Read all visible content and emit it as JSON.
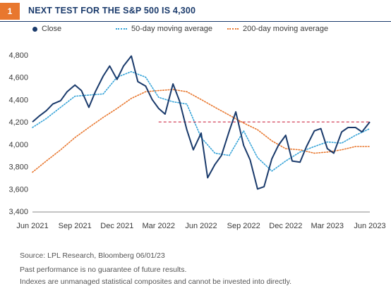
{
  "figure_number": "1",
  "colors": {
    "close": "#1a3a6b",
    "ma50": "#35a3d8",
    "ma200": "#e8772e",
    "reference": "#c8102e",
    "badge": "#e8772e"
  },
  "notes": {
    "source": "Source: LPL Research, Bloomberg  06/01/23",
    "disclaimer1": "Past performance is no guarantee of future results.",
    "disclaimer2": "Indexes are unmanaged statistical composites and cannot be invested into directly."
  },
  "chart_data": {
    "type": "line",
    "title": "NEXT TEST FOR THE S&P 500 IS 4,300",
    "xlabel": "",
    "ylabel": "",
    "ylim": [
      3400,
      4900
    ],
    "yticks": [
      3400,
      3600,
      3800,
      4000,
      4200,
      4400,
      4600,
      4800
    ],
    "ytick_labels": [
      "3,400",
      "3,600",
      "3,800",
      "4,000",
      "4,200",
      "4,400",
      "4,600",
      "4,800"
    ],
    "xlim": [
      "2021-06-01",
      "2023-06-01"
    ],
    "xticks": [
      "2021-06-01",
      "2021-09-01",
      "2021-12-01",
      "2022-03-01",
      "2022-06-01",
      "2022-09-01",
      "2022-12-01",
      "2023-03-01",
      "2023-06-01"
    ],
    "xtick_labels": [
      "Jun 2021",
      "Sep 2021",
      "Dec 2021",
      "Mar 2022",
      "Jun 2022",
      "Sep 2022",
      "Dec 2022",
      "Mar 2023",
      "Jun 2023"
    ],
    "grid": false,
    "legend_position": "top",
    "series": [
      {
        "name": "Close",
        "style": "solid",
        "points": [
          [
            "2021-06-01",
            4200
          ],
          [
            "2021-06-15",
            4250
          ],
          [
            "2021-07-01",
            4300
          ],
          [
            "2021-07-15",
            4360
          ],
          [
            "2021-08-01",
            4390
          ],
          [
            "2021-08-15",
            4470
          ],
          [
            "2021-09-01",
            4530
          ],
          [
            "2021-09-15",
            4480
          ],
          [
            "2021-10-01",
            4330
          ],
          [
            "2021-10-15",
            4470
          ],
          [
            "2021-11-01",
            4610
          ],
          [
            "2021-11-15",
            4700
          ],
          [
            "2021-12-01",
            4580
          ],
          [
            "2021-12-15",
            4700
          ],
          [
            "2022-01-01",
            4790
          ],
          [
            "2022-01-15",
            4560
          ],
          [
            "2022-02-01",
            4520
          ],
          [
            "2022-02-15",
            4400
          ],
          [
            "2022-03-01",
            4320
          ],
          [
            "2022-03-15",
            4270
          ],
          [
            "2022-04-01",
            4540
          ],
          [
            "2022-04-15",
            4390
          ],
          [
            "2022-05-01",
            4130
          ],
          [
            "2022-05-15",
            3950
          ],
          [
            "2022-06-01",
            4100
          ],
          [
            "2022-06-15",
            3700
          ],
          [
            "2022-07-01",
            3820
          ],
          [
            "2022-07-15",
            3900
          ],
          [
            "2022-08-01",
            4120
          ],
          [
            "2022-08-15",
            4290
          ],
          [
            "2022-09-01",
            3990
          ],
          [
            "2022-09-15",
            3860
          ],
          [
            "2022-10-01",
            3600
          ],
          [
            "2022-10-15",
            3620
          ],
          [
            "2022-11-01",
            3870
          ],
          [
            "2022-11-15",
            3990
          ],
          [
            "2022-12-01",
            4080
          ],
          [
            "2022-12-15",
            3850
          ],
          [
            "2023-01-01",
            3840
          ],
          [
            "2023-01-15",
            3980
          ],
          [
            "2023-02-01",
            4120
          ],
          [
            "2023-02-15",
            4140
          ],
          [
            "2023-03-01",
            3960
          ],
          [
            "2023-03-15",
            3920
          ],
          [
            "2023-04-01",
            4110
          ],
          [
            "2023-04-15",
            4150
          ],
          [
            "2023-05-01",
            4150
          ],
          [
            "2023-05-15",
            4110
          ],
          [
            "2023-06-01",
            4200
          ]
        ]
      },
      {
        "name": "50-day moving average",
        "style": "dotted",
        "points": [
          [
            "2021-06-01",
            4150
          ],
          [
            "2021-07-01",
            4230
          ],
          [
            "2021-08-01",
            4330
          ],
          [
            "2021-09-01",
            4430
          ],
          [
            "2021-10-01",
            4440
          ],
          [
            "2021-11-01",
            4450
          ],
          [
            "2021-12-01",
            4600
          ],
          [
            "2022-01-01",
            4650
          ],
          [
            "2022-02-01",
            4600
          ],
          [
            "2022-03-01",
            4420
          ],
          [
            "2022-04-01",
            4380
          ],
          [
            "2022-05-01",
            4360
          ],
          [
            "2022-06-01",
            4060
          ],
          [
            "2022-07-01",
            3920
          ],
          [
            "2022-08-01",
            3900
          ],
          [
            "2022-09-01",
            4120
          ],
          [
            "2022-10-01",
            3880
          ],
          [
            "2022-11-01",
            3760
          ],
          [
            "2022-12-01",
            3850
          ],
          [
            "2023-01-01",
            3930
          ],
          [
            "2023-02-01",
            3980
          ],
          [
            "2023-03-01",
            4020
          ],
          [
            "2023-04-01",
            4010
          ],
          [
            "2023-05-01",
            4080
          ],
          [
            "2023-06-01",
            4140
          ]
        ]
      },
      {
        "name": "200-day moving average",
        "style": "dotted",
        "points": [
          [
            "2021-06-01",
            3750
          ],
          [
            "2021-07-01",
            3850
          ],
          [
            "2021-08-01",
            3950
          ],
          [
            "2021-09-01",
            4060
          ],
          [
            "2021-10-01",
            4150
          ],
          [
            "2021-11-01",
            4240
          ],
          [
            "2021-12-01",
            4320
          ],
          [
            "2022-01-01",
            4410
          ],
          [
            "2022-02-01",
            4470
          ],
          [
            "2022-03-01",
            4480
          ],
          [
            "2022-04-01",
            4490
          ],
          [
            "2022-05-01",
            4470
          ],
          [
            "2022-06-01",
            4400
          ],
          [
            "2022-07-01",
            4330
          ],
          [
            "2022-08-01",
            4260
          ],
          [
            "2022-09-01",
            4190
          ],
          [
            "2022-10-01",
            4130
          ],
          [
            "2022-11-01",
            4030
          ],
          [
            "2022-12-01",
            3960
          ],
          [
            "2023-01-01",
            3950
          ],
          [
            "2023-02-01",
            3920
          ],
          [
            "2023-03-01",
            3930
          ],
          [
            "2023-04-01",
            3950
          ],
          [
            "2023-05-01",
            3980
          ],
          [
            "2023-06-01",
            3980
          ]
        ]
      }
    ],
    "reference_line": {
      "y": 4200,
      "x_start": "2022-03-01",
      "x_end": "2023-06-01",
      "style": "dashed"
    }
  }
}
